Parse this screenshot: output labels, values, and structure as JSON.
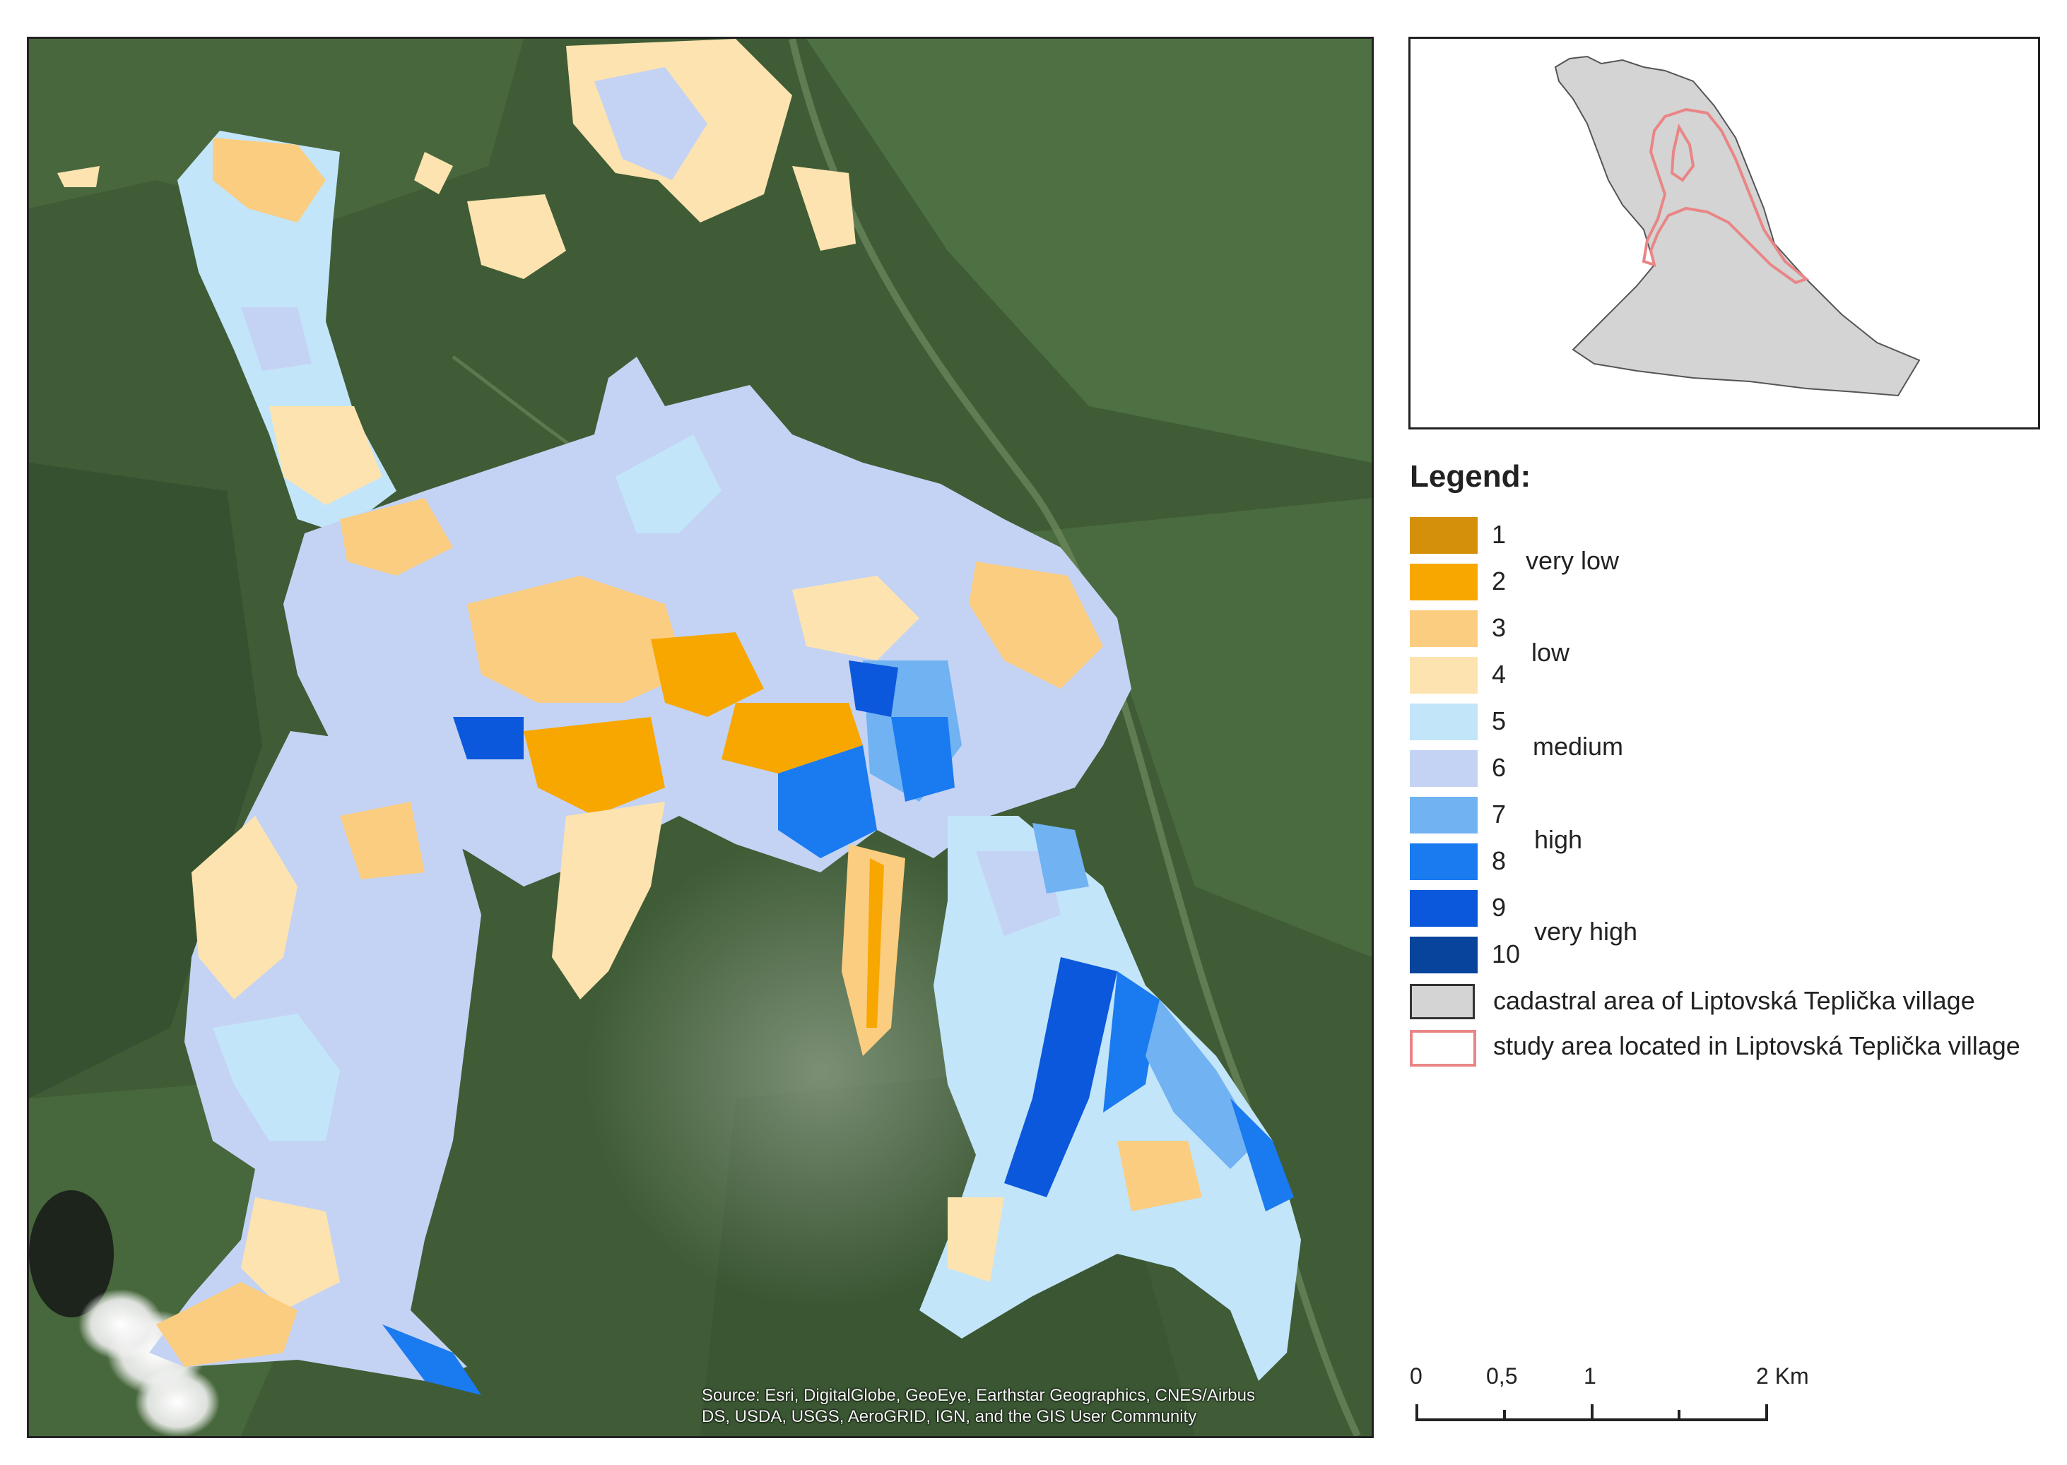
{
  "map": {
    "attribution_line1": "Source: Esri, DigitalGlobe, GeoEye, Earthstar Geographics, CNES/Airbus",
    "attribution_line2": "DS, USDA, USGS, AeroGRID, IGN, and the GIS User Community",
    "class_colors": {
      "1": "#d4900a",
      "2": "#f7a700",
      "3": "#fbcd80",
      "4": "#fde3b0",
      "5": "#c2e5fa",
      "6": "#c4d3f4",
      "7": "#70b2f2",
      "8": "#1a7af0",
      "9": "#0c58dc",
      "10": "#08449c"
    }
  },
  "locator": {
    "cadastral_fill": "#d4d4d4",
    "study_outline": "#e98585"
  },
  "legend": {
    "title": "Legend:",
    "classes": [
      {
        "num": "1",
        "color": "#d4900a"
      },
      {
        "num": "2",
        "color": "#f7a700"
      },
      {
        "num": "3",
        "color": "#fbcd80"
      },
      {
        "num": "4",
        "color": "#fde3b0"
      },
      {
        "num": "5",
        "color": "#c2e5fa"
      },
      {
        "num": "6",
        "color": "#c4d3f4"
      },
      {
        "num": "7",
        "color": "#70b2f2"
      },
      {
        "num": "8",
        "color": "#1a7af0"
      },
      {
        "num": "9",
        "color": "#0c58dc"
      },
      {
        "num": "10",
        "color": "#08449c"
      }
    ],
    "group_labels": [
      "very low",
      "low",
      "medium",
      "high",
      "very high"
    ],
    "cadastral_label": "cadastral area of Liptovská Teplička village",
    "study_label": "study area located in Liptovská Teplička village"
  },
  "scalebar": {
    "labels": [
      "0",
      "0,5",
      "1",
      "2 Km"
    ],
    "unit": "Km"
  }
}
